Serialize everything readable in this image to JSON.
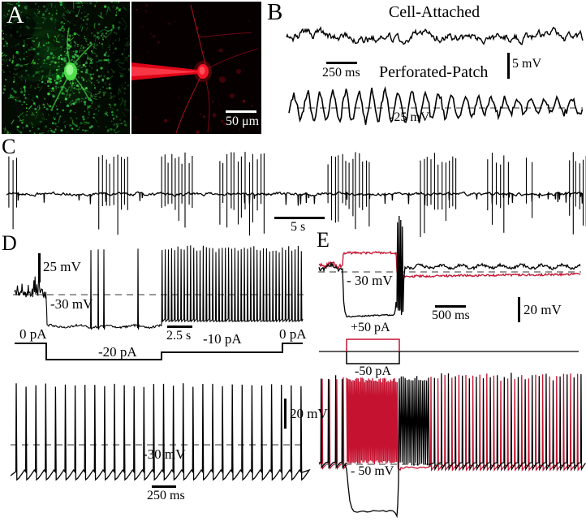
{
  "colors": {
    "red": "#c51230",
    "black": "#000000",
    "dashed": "#999999",
    "microscopy_green": "#4ee04a",
    "microscopy_red": "#e8101f"
  },
  "panels": {
    "A": {
      "label": "A",
      "scale_label": "50 μm"
    },
    "B": {
      "label": "B",
      "title": "Cell-Attached",
      "subtitle": "Perforated-Patch",
      "time_scale": "250 ms",
      "volt_scale": "5 mV",
      "vm": "-25 mV"
    },
    "C": {
      "label": "C",
      "time_scale": "5 s"
    },
    "D": {
      "label": "D",
      "volt_scale_top": "25 mV",
      "vm_top": "-30 mV",
      "i_start": "0 pA",
      "i_step1": "-20 pA",
      "time_scale_top": "2.5 s",
      "i_step2": "-10 pA",
      "i_end": "0 pA",
      "volt_scale_bottom": "20 mV",
      "vm_bottom": "-30 mV",
      "time_scale_bottom": "250 ms"
    },
    "E": {
      "label": "E",
      "vm_top": "- 30 mV",
      "time_scale": "500 ms",
      "volt_scale": "20 mV",
      "i_plus": "+50 pA",
      "i_minus": "-50 pA",
      "vm_bottom": "- 50 mV"
    }
  }
}
